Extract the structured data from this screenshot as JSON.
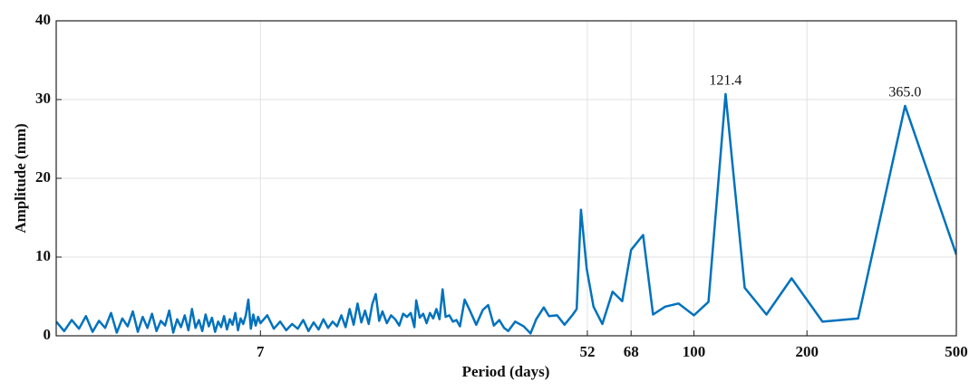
{
  "chart_data": {
    "type": "line",
    "xscale": "log",
    "grid": true,
    "color": "#0072bd",
    "xlabel": "Period (days)",
    "ylabel": "Amplitude (mm)",
    "xlim": [
      2,
      500
    ],
    "xticks": [
      7,
      52,
      68,
      100,
      200,
      500
    ],
    "ylim": [
      0,
      40
    ],
    "yticks": [
      0,
      10,
      20,
      30,
      40
    ],
    "x": [
      2.0,
      2.1,
      2.2,
      2.3,
      2.4,
      2.5,
      2.6,
      2.7,
      2.8,
      2.9,
      3.0,
      3.1,
      3.2,
      3.3,
      3.4,
      3.5,
      3.6,
      3.7,
      3.8,
      3.9,
      4.0,
      4.1,
      4.2,
      4.3,
      4.4,
      4.5,
      4.6,
      4.7,
      4.8,
      4.9,
      5.0,
      5.1,
      5.2,
      5.3,
      5.4,
      5.5,
      5.6,
      5.7,
      5.8,
      5.9,
      6.0,
      6.1,
      6.2,
      6.3,
      6.4,
      6.5,
      6.6,
      6.7,
      6.8,
      6.9,
      7.0,
      7.3,
      7.6,
      7.9,
      8.2,
      8.5,
      8.8,
      9.1,
      9.4,
      9.7,
      10.0,
      10.3,
      10.6,
      10.9,
      11.2,
      11.5,
      11.8,
      12.1,
      12.4,
      12.7,
      13.0,
      13.3,
      13.6,
      13.9,
      14.2,
      14.5,
      14.8,
      15.2,
      15.6,
      16.0,
      16.4,
      16.8,
      17.2,
      17.6,
      18.0,
      18.2,
      18.6,
      19.0,
      19.4,
      19.8,
      20.2,
      20.6,
      21.0,
      21.4,
      21.8,
      22.3,
      22.8,
      23.3,
      23.8,
      24.5,
      25.3,
      26.3,
      27.4,
      28.3,
      29.3,
      30.3,
      31.2,
      32.0,
      33.4,
      35.2,
      36.7,
      38.0,
      39.8,
      41.1,
      43.2,
      45.2,
      47.4,
      48.7,
      50.0,
      51.8,
      54.0,
      57.0,
      60.7,
      64.4,
      68,
      73.2,
      77.8,
      83.8,
      91,
      100,
      109.3,
      121.4,
      136.5,
      156,
      182,
      220,
      273.7,
      365,
      500
    ],
    "values": [
      1.8,
      0.6,
      2.0,
      0.9,
      2.5,
      0.5,
      1.9,
      1.0,
      2.9,
      0.4,
      2.2,
      1.2,
      3.1,
      0.5,
      2.4,
      1.0,
      2.8,
      0.6,
      1.9,
      1.3,
      3.2,
      0.4,
      2.1,
      1.1,
      2.6,
      0.7,
      3.4,
      1.0,
      2.0,
      0.6,
      2.7,
      1.2,
      2.3,
      0.5,
      1.8,
      1.1,
      2.5,
      0.8,
      2.1,
      1.4,
      2.9,
      0.7,
      2.2,
      1.5,
      2.6,
      4.6,
      0.9,
      2.7,
      1.3,
      2.4,
      1.6,
      2.6,
      0.9,
      1.8,
      0.7,
      1.5,
      0.9,
      2.0,
      0.6,
      1.7,
      0.8,
      2.1,
      1.0,
      1.8,
      1.2,
      2.6,
      1.1,
      3.4,
      1.4,
      4.1,
      1.7,
      3.2,
      1.5,
      4.0,
      5.3,
      1.9,
      3.1,
      1.6,
      2.6,
      2.1,
      1.3,
      2.8,
      2.4,
      2.9,
      1.1,
      4.5,
      2.3,
      2.8,
      1.6,
      2.9,
      2.2,
      3.4,
      2.1,
      5.9,
      2.4,
      2.6,
      1.8,
      2.0,
      1.2,
      4.6,
      3.2,
      1.4,
      3.3,
      3.9,
      1.3,
      2.0,
      1.0,
      0.6,
      1.8,
      1.2,
      0.3,
      2.1,
      3.6,
      2.5,
      2.6,
      1.4,
      2.6,
      3.4,
      16.0,
      8.5,
      3.7,
      1.5,
      5.6,
      4.4,
      10.9,
      12.8,
      2.7,
      3.7,
      4.1,
      2.6,
      4.3,
      30.7,
      6.1,
      2.7,
      7.3,
      1.8,
      2.2,
      29.2,
      10.3
    ],
    "annotations": [
      {
        "text": "121.4",
        "x": 121.4,
        "y": 30.7
      },
      {
        "text": "365.0",
        "x": 365,
        "y": 29.2
      }
    ]
  }
}
